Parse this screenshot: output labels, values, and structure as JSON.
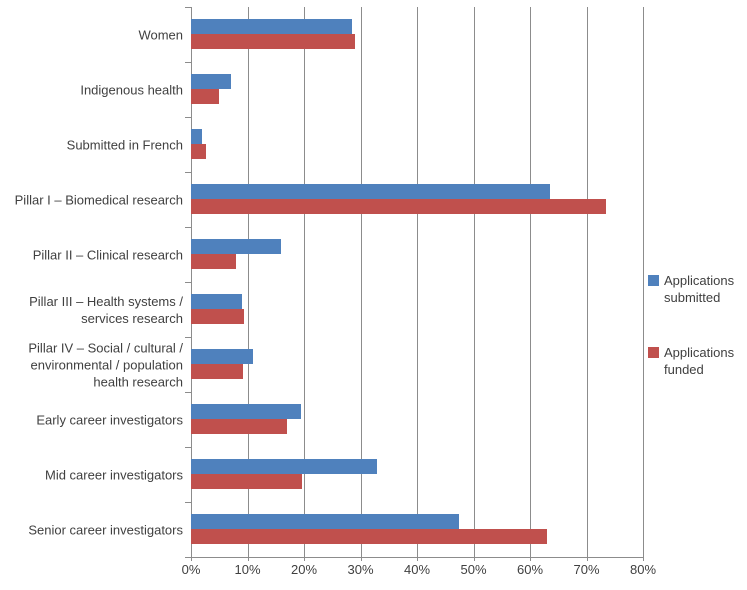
{
  "chart_data": {
    "type": "bar",
    "orientation": "horizontal",
    "title": "",
    "xlabel": "",
    "ylabel": "",
    "grid": true,
    "categories": [
      "Women",
      "Indigenous health",
      "Submitted in French",
      "Pillar I – Biomedical research",
      "Pillar II – Clinical research",
      "Pillar III – Health systems /\nservices research",
      "Pillar IV – Social / cultural /\nenvironmental / population\nhealth research",
      "Early career investigators",
      "Mid career investigators",
      "Senior career investigators"
    ],
    "series": [
      {
        "name": "Applications submitted",
        "color": "#4F81BD",
        "values": [
          28.5,
          7,
          2,
          63.5,
          16,
          9,
          11,
          19.5,
          33,
          47.5
        ]
      },
      {
        "name": "Applications funded",
        "color": "#C0504D",
        "values": [
          29,
          5,
          2.7,
          73.5,
          8,
          9.3,
          9.2,
          17,
          19.7,
          63
        ]
      }
    ],
    "x_axis": {
      "min": 0,
      "max": 80,
      "unit": "%",
      "ticks": [
        "0%",
        "10%",
        "20%",
        "30%",
        "40%",
        "50%",
        "60%",
        "70%",
        "80%"
      ]
    },
    "legend": {
      "position": "right",
      "entries": [
        "Applications submitted",
        "Applications funded"
      ]
    },
    "colors": {
      "gridline": "#8C8C8C",
      "axis": "#8C8C8C",
      "text": "#404040",
      "background": "#FFFFFF"
    }
  }
}
